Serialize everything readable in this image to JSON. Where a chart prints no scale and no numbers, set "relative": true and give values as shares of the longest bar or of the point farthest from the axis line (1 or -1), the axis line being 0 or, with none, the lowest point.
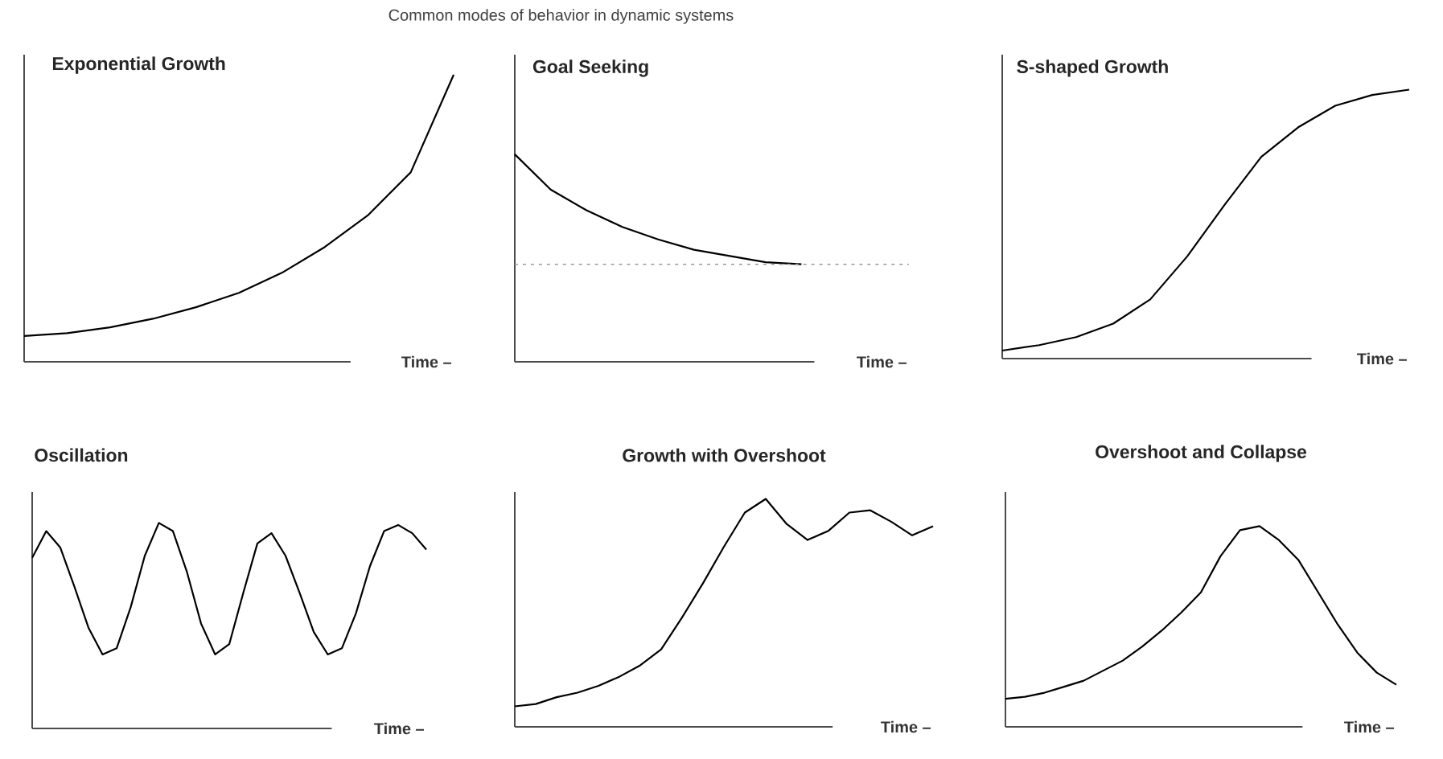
{
  "chart_data": [
    {
      "type": "line",
      "title": "Exponential Growth",
      "xlabel": "Time –",
      "relative": true,
      "color": "#000000",
      "annotations": [
        "Common modes of behavior in dynamic systems"
      ],
      "categories": [
        null,
        null,
        null,
        null,
        null,
        null,
        null,
        null,
        null,
        null,
        null
      ],
      "values": [
        0.09,
        0.1,
        0.12,
        0.15,
        0.19,
        0.24,
        0.31,
        0.4,
        0.51,
        0.66,
        1.0
      ]
    },
    {
      "type": "line",
      "title": "Goal Seeking",
      "xlabel": "Time –",
      "relative": true,
      "color": "#000000",
      "categories": [
        null,
        null,
        null,
        null,
        null,
        null,
        null,
        null,
        null,
        null,
        null,
        null
      ],
      "values": [
        1.0,
        0.83,
        0.73,
        0.65,
        0.59,
        0.54,
        0.51,
        0.48,
        0.47,
        null,
        null,
        null
      ],
      "ref_lines": [
        {
          "axis": "y",
          "value": 0.47,
          "color": "#999999",
          "line_style": "dashed"
        }
      ]
    },
    {
      "type": "line",
      "title": "S-shaped Growth",
      "xlabel": "Time –",
      "relative": true,
      "color": "#000000",
      "categories": [
        null,
        null,
        null,
        null,
        null,
        null,
        null,
        null,
        null,
        null,
        null,
        null
      ],
      "values": [
        0.03,
        0.05,
        0.08,
        0.13,
        0.22,
        0.38,
        0.57,
        0.75,
        0.86,
        0.94,
        0.98,
        1.0
      ]
    },
    {
      "type": "line",
      "title": "Oscillation",
      "xlabel": "Time –",
      "relative": true,
      "color": "#000000",
      "categories": [
        null,
        null,
        null,
        null,
        null,
        null,
        null,
        null,
        null,
        null,
        null,
        null,
        null,
        null,
        null,
        null,
        null,
        null,
        null,
        null,
        null,
        null,
        null,
        null,
        null,
        null,
        null,
        null,
        null
      ],
      "values": [
        0.83,
        0.96,
        0.88,
        0.69,
        0.49,
        0.36,
        0.39,
        0.59,
        0.84,
        1.0,
        0.96,
        0.76,
        0.51,
        0.36,
        0.41,
        0.66,
        0.9,
        0.95,
        0.84,
        0.66,
        0.47,
        0.36,
        0.39,
        0.56,
        0.79,
        0.96,
        0.99,
        0.95,
        0.87
      ]
    },
    {
      "type": "line",
      "title": "Growth with Overshoot",
      "xlabel": "Time –",
      "relative": true,
      "color": "#000000",
      "categories": [
        null,
        null,
        null,
        null,
        null,
        null,
        null,
        null,
        null,
        null,
        null,
        null,
        null,
        null,
        null,
        null,
        null,
        null,
        null,
        null,
        null
      ],
      "values": [
        0.09,
        0.1,
        0.13,
        0.15,
        0.18,
        0.22,
        0.27,
        0.34,
        0.48,
        0.63,
        0.79,
        0.94,
        1.0,
        0.89,
        0.82,
        0.86,
        0.94,
        0.95,
        0.9,
        0.84,
        0.88
      ]
    },
    {
      "type": "line",
      "title": "Overshoot and Collapse",
      "xlabel": "Time –",
      "relative": true,
      "color": "#000000",
      "categories": [
        null,
        null,
        null,
        null,
        null,
        null,
        null,
        null,
        null,
        null,
        null,
        null,
        null,
        null,
        null,
        null,
        null,
        null,
        null,
        null,
        null
      ],
      "values": [
        0.14,
        0.15,
        0.17,
        0.2,
        0.23,
        0.28,
        0.33,
        0.4,
        0.48,
        0.57,
        0.67,
        0.85,
        0.98,
        1.0,
        0.93,
        0.83,
        0.67,
        0.51,
        0.37,
        0.27,
        0.21
      ]
    }
  ]
}
